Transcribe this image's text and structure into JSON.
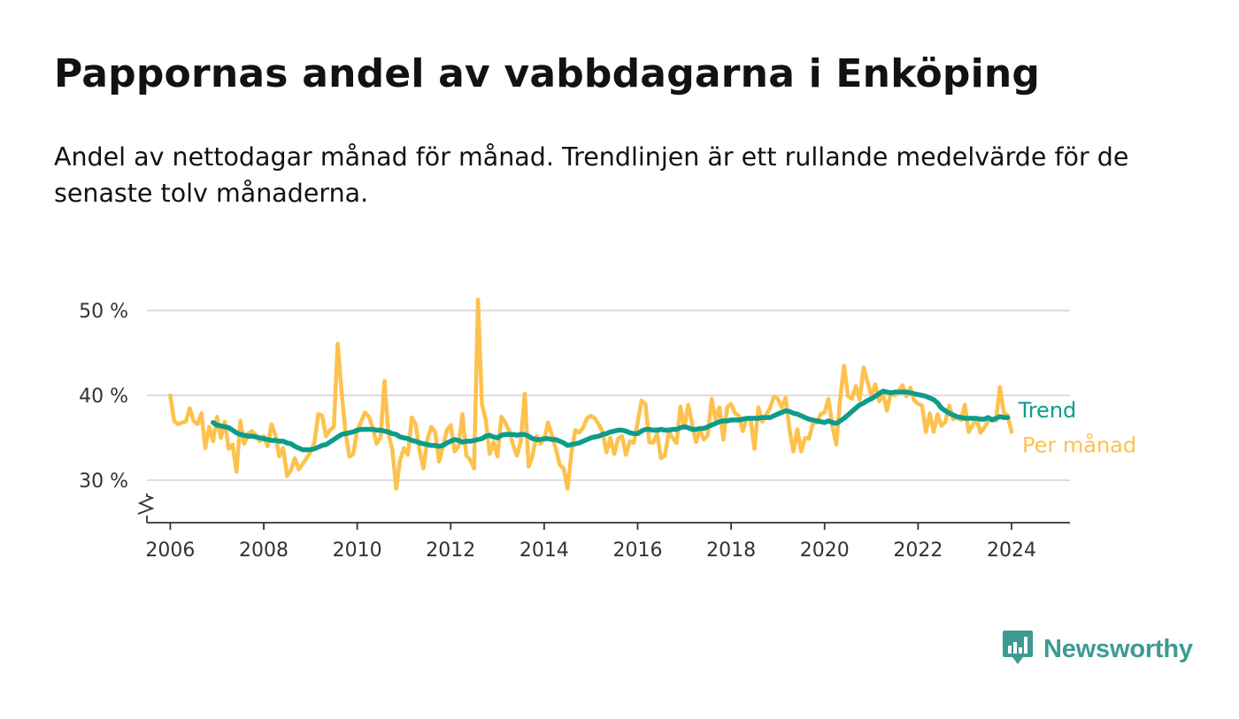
{
  "title": "Pappornas andel av vabbdagarna i Enköping",
  "subtitle": "Andel av nettodagar månad för månad. Trendlinjen är ett rullande medelvärde för de senaste tolv månaderna.",
  "brand": {
    "name": "Newsworthy",
    "icon": "newsworthy-logo-icon"
  },
  "colors": {
    "monthly": "#fdc14d",
    "trend": "#0d9c8b",
    "grid": "#d9d9d9",
    "axis": "#333333",
    "brand": "#3e9b91"
  },
  "chart_data": {
    "type": "line",
    "title": "Pappornas andel av vabbdagarna i Enköping",
    "xlabel": "",
    "ylabel": "",
    "xlim": [
      2005.5,
      2025.25
    ],
    "ylim": [
      25,
      52
    ],
    "yaxis_break": true,
    "x_ticks": [
      2006,
      2008,
      2010,
      2012,
      2014,
      2016,
      2018,
      2020,
      2022,
      2024
    ],
    "x_tick_labels": [
      "2006",
      "2008",
      "2010",
      "2012",
      "2014",
      "2016",
      "2018",
      "2020",
      "2022",
      "2024"
    ],
    "y_ticks": [
      30,
      40,
      50
    ],
    "y_tick_labels": [
      "30 %",
      "40 %",
      "50 %"
    ],
    "legend": "direct labels at line ends (right)",
    "series": [
      {
        "name": "Per månad",
        "start": 2006.0,
        "step": 0.0833333,
        "values": [
          40.0,
          37.0,
          36.6,
          36.8,
          36.9,
          38.5,
          37.0,
          36.6,
          37.9,
          33.8,
          36.3,
          34.6,
          37.5,
          35.0,
          36.9,
          33.7,
          34.2,
          31.0,
          37.0,
          34.3,
          35.5,
          35.8,
          35.3,
          34.6,
          35.2,
          34.0,
          36.6,
          35.3,
          32.8,
          33.8,
          30.5,
          31.2,
          32.6,
          31.3,
          31.9,
          32.6,
          33.3,
          34.4,
          37.8,
          37.6,
          35.2,
          35.9,
          36.3,
          46.1,
          40.4,
          35.7,
          32.8,
          33.1,
          35.9,
          36.9,
          38.0,
          37.5,
          36.2,
          34.3,
          35.1,
          41.7,
          35.5,
          33.6,
          29.0,
          32.4,
          33.8,
          33.0,
          37.4,
          36.6,
          33.5,
          31.4,
          34.8,
          36.3,
          35.7,
          32.2,
          34.0,
          35.9,
          36.5,
          33.4,
          34.0,
          37.8,
          32.9,
          32.4,
          31.4,
          51.3,
          39.0,
          37.1,
          33.1,
          34.5,
          32.8,
          37.5,
          36.8,
          35.8,
          34.2,
          32.9,
          34.6,
          40.2,
          31.6,
          32.9,
          35.2,
          34.3,
          34.8,
          36.8,
          35.3,
          33.7,
          31.8,
          31.4,
          29.0,
          33.2,
          35.9,
          35.6,
          36.2,
          37.3,
          37.6,
          37.3,
          36.6,
          35.7,
          33.3,
          35.0,
          33.1,
          34.9,
          35.2,
          33.0,
          34.6,
          34.4,
          36.8,
          39.4,
          39.0,
          34.5,
          34.4,
          35.5,
          32.6,
          32.9,
          35.7,
          35.0,
          34.4,
          38.7,
          36.2,
          38.9,
          36.6,
          34.5,
          36.0,
          34.8,
          35.3,
          39.6,
          37.2,
          38.6,
          34.8,
          38.6,
          39.0,
          37.9,
          37.6,
          35.8,
          37.3,
          37.2,
          33.7,
          38.6,
          36.9,
          37.7,
          38.5,
          39.9,
          39.6,
          38.6,
          39.7,
          36.0,
          33.4,
          36.0,
          33.4,
          35.0,
          34.9,
          36.7,
          36.8,
          37.8,
          38.0,
          39.6,
          36.4,
          34.2,
          39.6,
          43.5,
          39.9,
          39.6,
          41.1,
          39.5,
          43.3,
          41.6,
          40.0,
          41.3,
          39.3,
          40.2,
          38.2,
          40.3,
          40.0,
          40.5,
          41.2,
          39.9,
          40.9,
          39.4,
          39.0,
          38.8,
          35.7,
          37.9,
          35.7,
          37.8,
          36.4,
          36.9,
          38.8,
          37.2,
          37.4,
          37.1,
          38.9,
          35.7,
          36.5,
          37.3,
          35.6,
          36.2,
          37.0,
          37.3,
          37.0,
          41.0,
          38.0,
          37.6,
          35.7
        ]
      },
      {
        "name": "Trend",
        "start": 2006.9167,
        "step": 0.0833333,
        "values": [
          36.8,
          36.5,
          36.4,
          36.3,
          36.2,
          35.9,
          35.6,
          35.4,
          35.3,
          35.2,
          35.2,
          35.1,
          35.0,
          34.9,
          34.8,
          34.7,
          34.7,
          34.6,
          34.6,
          34.4,
          34.3,
          34.0,
          33.8,
          33.6,
          33.6,
          33.6,
          33.7,
          33.9,
          34.1,
          34.2,
          34.5,
          34.8,
          35.1,
          35.4,
          35.5,
          35.6,
          35.7,
          35.9,
          36.0,
          36.0,
          36.0,
          36.0,
          35.9,
          35.9,
          35.8,
          35.7,
          35.5,
          35.4,
          35.1,
          35.0,
          34.9,
          34.7,
          34.6,
          34.4,
          34.3,
          34.2,
          34.1,
          34.1,
          34.0,
          34.1,
          34.4,
          34.6,
          34.8,
          34.7,
          34.5,
          34.6,
          34.6,
          34.7,
          34.8,
          34.9,
          35.2,
          35.3,
          35.1,
          35.0,
          35.3,
          35.4,
          35.4,
          35.4,
          35.3,
          35.4,
          35.4,
          35.2,
          34.9,
          34.8,
          34.8,
          34.9,
          34.9,
          34.8,
          34.8,
          34.6,
          34.4,
          34.1,
          34.2,
          34.3,
          34.4,
          34.6,
          34.8,
          35.0,
          35.1,
          35.2,
          35.4,
          35.5,
          35.7,
          35.8,
          35.9,
          35.9,
          35.8,
          35.6,
          35.5,
          35.5,
          35.8,
          36.0,
          36.0,
          35.9,
          35.9,
          36.0,
          35.9,
          35.9,
          36.0,
          36.0,
          36.2,
          36.3,
          36.2,
          36.0,
          36.0,
          36.1,
          36.1,
          36.3,
          36.5,
          36.7,
          36.9,
          37.0,
          37.0,
          37.1,
          37.1,
          37.1,
          37.2,
          37.3,
          37.3,
          37.3,
          37.3,
          37.4,
          37.4,
          37.4,
          37.6,
          37.8,
          38.0,
          38.2,
          38.1,
          37.9,
          37.8,
          37.6,
          37.4,
          37.2,
          37.1,
          37.0,
          36.9,
          36.8,
          37.0,
          36.8,
          36.7,
          37.0,
          37.3,
          37.7,
          38.1,
          38.5,
          38.9,
          39.1,
          39.4,
          39.6,
          39.9,
          40.2,
          40.5,
          40.4,
          40.3,
          40.4,
          40.4,
          40.4,
          40.4,
          40.3,
          40.2,
          40.1,
          40.0,
          39.9,
          39.7,
          39.5,
          39.1,
          38.5,
          38.2,
          37.9,
          37.7,
          37.5,
          37.4,
          37.3,
          37.3,
          37.3,
          37.3,
          37.2,
          37.2,
          37.4,
          37.1,
          37.3,
          37.5,
          37.4,
          37.4
        ]
      }
    ]
  }
}
